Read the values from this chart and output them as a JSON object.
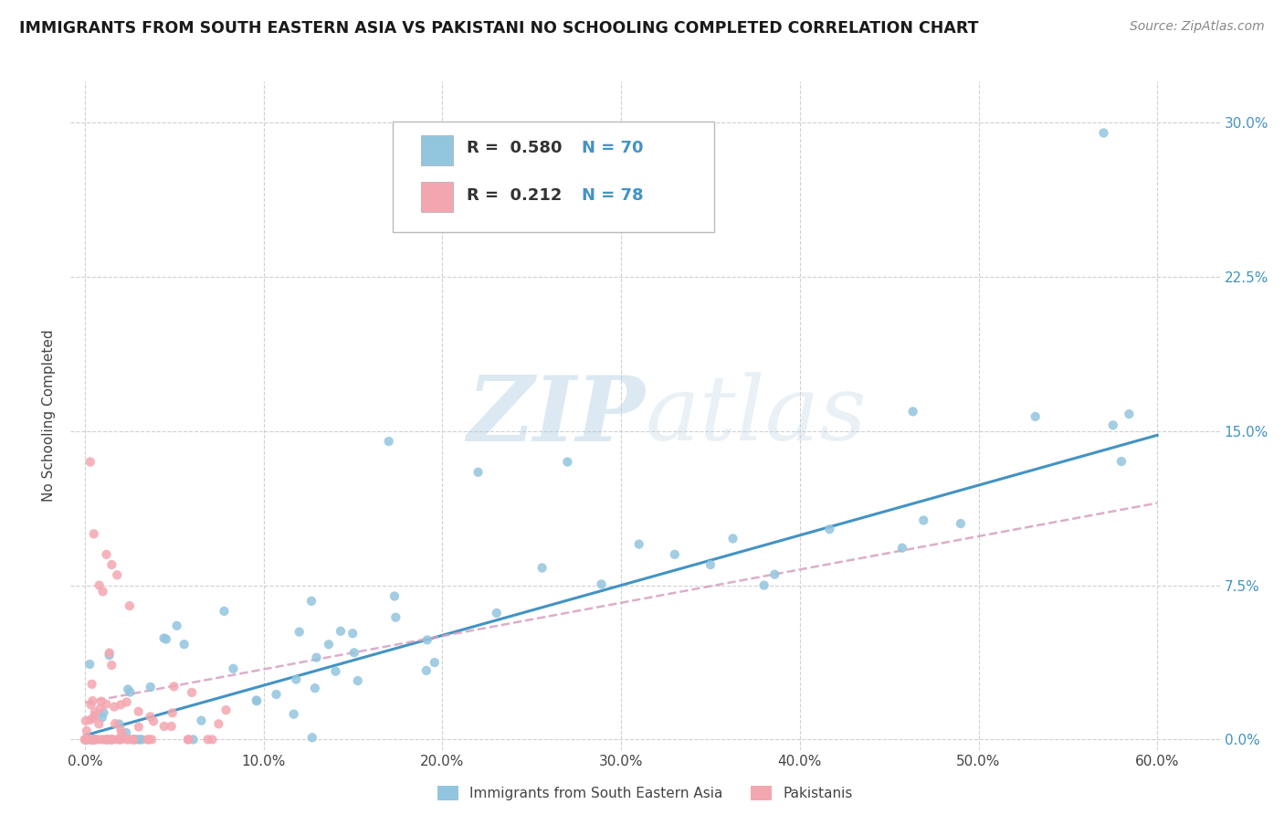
{
  "title": "IMMIGRANTS FROM SOUTH EASTERN ASIA VS PAKISTANI NO SCHOOLING COMPLETED CORRELATION CHART",
  "source": "Source: ZipAtlas.com",
  "ylabel_label": "No Schooling Completed",
  "x_ticks": [
    0.0,
    0.1,
    0.2,
    0.3,
    0.4,
    0.5,
    0.6
  ],
  "x_tick_labels": [
    "0.0%",
    "10.0%",
    "20.0%",
    "30.0%",
    "40.0%",
    "50.0%",
    "60.0%"
  ],
  "y_ticks": [
    0.0,
    0.075,
    0.15,
    0.225,
    0.3
  ],
  "y_tick_labels": [
    "0.0%",
    "7.5%",
    "15.0%",
    "22.5%",
    "30.0%"
  ],
  "xlim": [
    -0.008,
    0.635
  ],
  "ylim": [
    -0.005,
    0.32
  ],
  "blue_R": "0.580",
  "blue_N": "70",
  "pink_R": "0.212",
  "pink_N": "78",
  "blue_color": "#92c5de",
  "pink_color": "#f4a6b0",
  "blue_line_color": "#4393c3",
  "pink_line_color": "#d6a0c0",
  "grid_color": "#d0d0d0",
  "watermark_color": "#b8d4e8",
  "right_tick_color": "#4393c3",
  "legend_label_blue": "Immigrants from South Eastern Asia",
  "legend_label_pink": "Pakistanis",
  "blue_line_x0": 0.0,
  "blue_line_x1": 0.6,
  "blue_line_y0": 0.002,
  "blue_line_y1": 0.148,
  "pink_line_x0": 0.0,
  "pink_line_x1": 0.6,
  "pink_line_y0": 0.018,
  "pink_line_y1": 0.115
}
